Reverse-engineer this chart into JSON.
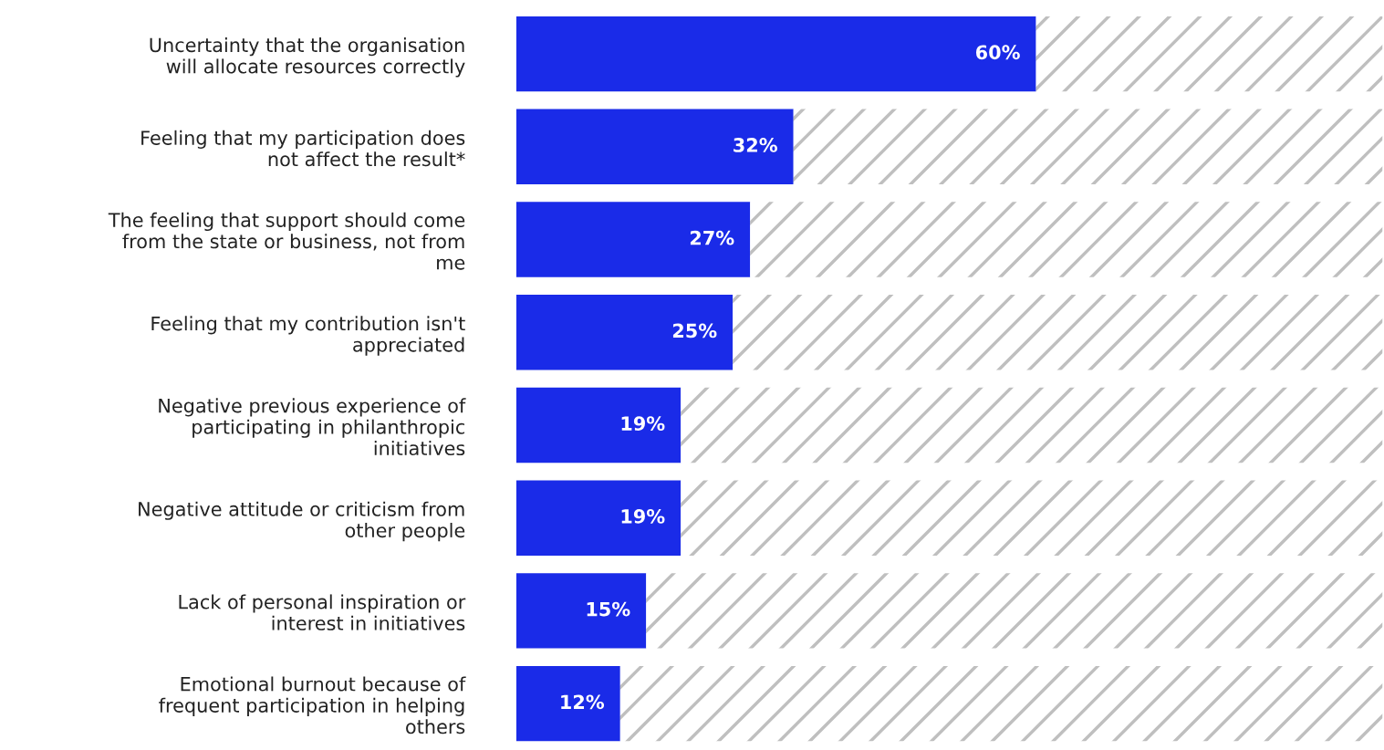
{
  "chart_data": {
    "type": "bar",
    "orientation": "horizontal",
    "stacked": true,
    "categories": [
      "Uncertainty that the organisation will allocate resources correctly",
      "Feeling that my participation does not affect the result*",
      "The feeling that support should come from the state or business, not from me",
      "Feeling that my contribution isn't appreciated",
      "Negative previous experience of participating in philanthropic initiatives",
      "Negative attitude or criticism from other people",
      "Lack of personal inspiration or interest in initiatives",
      "Emotional burnout because of frequent participation in helping others"
    ],
    "series": [
      {
        "color": "#1a2be8",
        "values": [
          60,
          32,
          27,
          25,
          19,
          19,
          15,
          12
        ],
        "value_labels": [
          "60%",
          "32%",
          "27%",
          "25%",
          "19%",
          "19%",
          "15%",
          "12%"
        ]
      },
      {
        "color": "#bfbfbf",
        "values": [
          40,
          68,
          73,
          75,
          81,
          81,
          85,
          88
        ]
      }
    ],
    "xlim": [
      0,
      100
    ],
    "tick_labels": "y",
    "grid": false,
    "legend": false
  }
}
